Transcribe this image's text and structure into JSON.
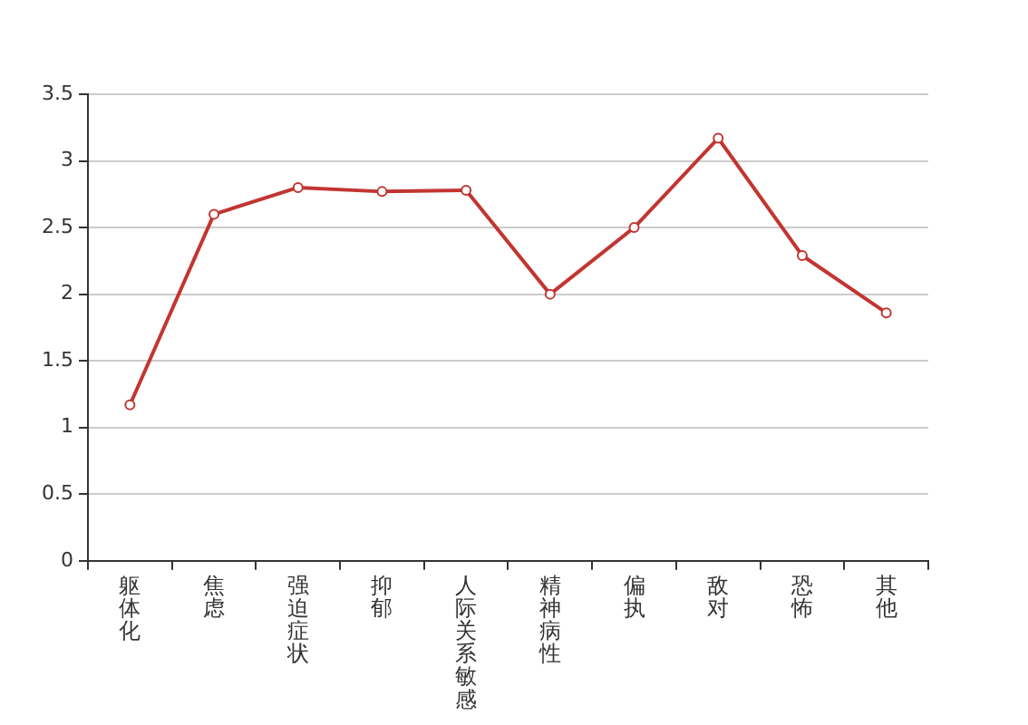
{
  "chart_data": {
    "type": "line",
    "categories": [
      "躯体化",
      "焦虑",
      "强迫症状",
      "抑郁",
      "人际关系敏感",
      "精神病性",
      "偏执",
      "敌对",
      "恐怖",
      "其他"
    ],
    "series": [
      {
        "color": "#c23531",
        "values": [
          1.17,
          2.6,
          2.8,
          2.77,
          2.78,
          2.0,
          2.5,
          3.17,
          2.29,
          1.86
        ]
      }
    ],
    "ylim": [
      0,
      3.5
    ],
    "yticks": [
      0,
      0.5,
      1,
      1.5,
      2,
      2.5,
      3,
      3.5
    ],
    "grid": "y",
    "legend": false,
    "marker": "circle",
    "line_style": "solid"
  }
}
